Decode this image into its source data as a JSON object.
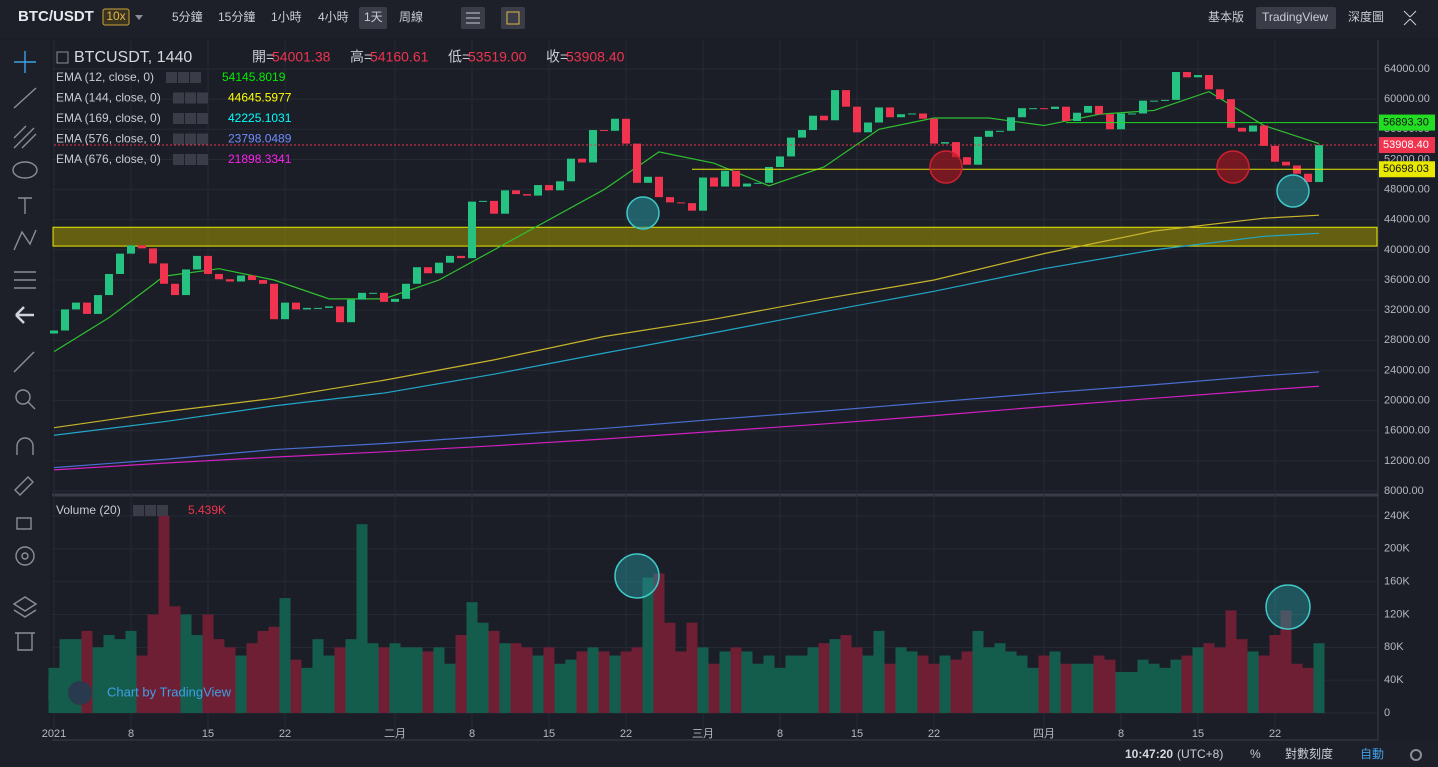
{
  "header": {
    "pair": "BTC/USDT",
    "leverage": "10x",
    "timeframes": [
      "5分鐘",
      "15分鐘",
      "1小時",
      "4小時",
      "1天",
      "周線"
    ],
    "active_timeframe": "1天",
    "views": [
      "基本版",
      "TradingView",
      "深度圖"
    ],
    "active_view": "TradingView"
  },
  "chart_data": {
    "type": "candlestick",
    "symbol": "BTCUSDT, 1440",
    "ohlc_legend": [
      {
        "label": "開=",
        "value": "54001.38"
      },
      {
        "label": "高=",
        "value": "54160.61"
      },
      {
        "label": "低=",
        "value": "53519.00"
      },
      {
        "label": "收=",
        "value": "53908.40"
      }
    ],
    "up_color": "#26c281",
    "down_color": "#f0334e",
    "first_open": 28900,
    "closes": [
      29300,
      32100,
      33000,
      31500,
      34000,
      36800,
      39500,
      40600,
      40200,
      38200,
      35500,
      34000,
      37400,
      39200,
      36800,
      36100,
      35800,
      36600,
      36000,
      35500,
      30800,
      33000,
      32100,
      32300,
      32300,
      32500,
      30400,
      33400,
      34300,
      34300,
      33100,
      33500,
      35500,
      37700,
      36900,
      38300,
      39200,
      38900,
      46400,
      46500,
      44800,
      47900,
      47400,
      47200,
      48600,
      47900,
      49100,
      52100,
      51600,
      55900,
      55800,
      57400,
      54100,
      48900,
      49700,
      47000,
      46300,
      46200,
      45200,
      49600,
      48400,
      50500,
      48400,
      48800,
      48900,
      51000,
      52400,
      54900,
      55900,
      57800,
      57200,
      61200,
      59000,
      55600,
      56900,
      58900,
      57600,
      58000,
      58100,
      57400,
      54100,
      54300,
      52300,
      51300,
      55000,
      55800,
      55800,
      57600,
      58800,
      58800,
      58700,
      59000,
      57100,
      58200,
      59100,
      58000,
      56000,
      58100,
      58100,
      59800,
      59800,
      59900,
      63600,
      62900,
      63200,
      61300,
      60000,
      56200,
      55700,
      56500,
      53800,
      51700,
      51200,
      50100,
      49000,
      53900
    ],
    "emas": [
      {
        "name": "EMA (12, close, 0)",
        "last": "54145.8019",
        "color": "#2fc12f",
        "label_color": "#00ee00",
        "x": [
          0,
          5,
          10,
          15,
          20,
          25,
          30,
          35,
          40,
          45,
          50,
          55,
          60,
          65,
          70,
          75,
          80,
          85,
          90,
          95,
          100,
          105,
          110,
          115
        ],
        "values": [
          26500,
          31000,
          36500,
          37500,
          36000,
          33500,
          33500,
          36000,
          40000,
          44000,
          48000,
          53000,
          51500,
          48500,
          51000,
          56000,
          57500,
          57500,
          56500,
          58000,
          58500,
          61000,
          56500,
          54100
        ]
      },
      {
        "name": "EMA (144, close, 0)",
        "last": "44645.5977",
        "color": "#c8b42a",
        "label_color": "#ffff00",
        "x": [
          0,
          10,
          20,
          30,
          40,
          50,
          60,
          70,
          80,
          90,
          100,
          110,
          115
        ],
        "values": [
          16400,
          18500,
          20300,
          22700,
          25400,
          28500,
          30800,
          33500,
          36000,
          39500,
          42500,
          44200,
          44600
        ]
      },
      {
        "name": "EMA (169, close, 0)",
        "last": "42225.1031",
        "color": "#22a6c8",
        "label_color": "#00ffff",
        "x": [
          0,
          10,
          20,
          30,
          40,
          50,
          60,
          70,
          80,
          90,
          100,
          110,
          115
        ],
        "values": [
          15400,
          17200,
          19300,
          21000,
          23500,
          26300,
          29000,
          31800,
          34500,
          37500,
          40000,
          41800,
          42200
        ]
      },
      {
        "name": "EMA (576, close, 0)",
        "last": "23798.0489",
        "color": "#4a6ed0",
        "label_color": "#6f8cff",
        "x": [
          0,
          10,
          20,
          30,
          40,
          50,
          60,
          70,
          80,
          90,
          100,
          110,
          115
        ],
        "values": [
          11100,
          12200,
          13500,
          14300,
          15300,
          16300,
          17500,
          18600,
          19800,
          21000,
          22100,
          23300,
          23800
        ]
      },
      {
        "name": "EMA (676, close, 0)",
        "last": "21898.3341",
        "color": "#d020c0",
        "label_color": "#ff22ee",
        "x": [
          0,
          10,
          20,
          30,
          40,
          50,
          60,
          70,
          80,
          90,
          100,
          110,
          115
        ],
        "values": [
          10800,
          11700,
          12500,
          13200,
          14000,
          14900,
          15900,
          16900,
          18000,
          19200,
          20300,
          21400,
          21900
        ]
      }
    ],
    "ylim": [
      7735,
      67850
    ],
    "yticks": [
      {
        "value": 64000,
        "label": "64000.00"
      },
      {
        "value": 60000,
        "label": "60000.00"
      },
      {
        "value": 56000,
        "label": "56000.00"
      },
      {
        "value": 52000,
        "label": "52000.00"
      },
      {
        "value": 48000,
        "label": "48000.00"
      },
      {
        "value": 44000,
        "label": "44000.00"
      },
      {
        "value": 40000,
        "label": "40000.00"
      },
      {
        "value": 36000,
        "label": "36000.00"
      },
      {
        "value": 32000,
        "label": "32000.00"
      },
      {
        "value": 28000,
        "label": "28000.00"
      },
      {
        "value": 24000,
        "label": "24000.00"
      },
      {
        "value": 20000,
        "label": "20000.00"
      },
      {
        "value": 16000,
        "label": "16000.00"
      },
      {
        "value": 12000,
        "label": "12000.00"
      },
      {
        "value": 8000,
        "label": "8000.00"
      }
    ],
    "price_lines": [
      {
        "value": 56893.3,
        "label": "56893.30",
        "color": "#22dd22",
        "from": 92
      },
      {
        "value": 53908.4,
        "label": "53908.40",
        "color": "#f0334e",
        "from": 0
      },
      {
        "value": 50698.03,
        "label": "50698.03",
        "color": "#e8e800",
        "from": 58
      }
    ],
    "zone": [
      40500,
      43000
    ],
    "x_labels": [
      {
        "day": 0,
        "label": "2021"
      },
      {
        "day": 7,
        "label": "8"
      },
      {
        "day": 14,
        "label": "15"
      },
      {
        "day": 21,
        "label": "22"
      },
      {
        "day": 31,
        "label": "二月"
      },
      {
        "day": 38,
        "label": "8"
      },
      {
        "day": 45,
        "label": "15"
      },
      {
        "day": 52,
        "label": "22"
      },
      {
        "day": 59,
        "label": "三月"
      },
      {
        "day": 66,
        "label": "8"
      },
      {
        "day": 73,
        "label": "15"
      },
      {
        "day": 80,
        "label": "22"
      },
      {
        "day": 90,
        "label": "四月"
      },
      {
        "day": 97,
        "label": "8"
      },
      {
        "day": 104,
        "label": "15"
      },
      {
        "day": 111,
        "label": "22"
      }
    ],
    "volume": {
      "name": "Volume (20)",
      "last": "5.439K",
      "values": [
        55000,
        90000,
        90000,
        100000,
        80000,
        95000,
        90000,
        100000,
        70000,
        120000,
        240000,
        130000,
        120000,
        95000,
        120000,
        90000,
        80000,
        70000,
        85000,
        100000,
        105000,
        140000,
        65000,
        55000,
        90000,
        70000,
        80000,
        90000,
        230000,
        85000,
        80000,
        85000,
        80000,
        80000,
        75000,
        80000,
        60000,
        95000,
        135000,
        110000,
        100000,
        85000,
        85000,
        80000,
        70000,
        80000,
        60000,
        65000,
        75000,
        80000,
        75000,
        70000,
        75000,
        80000,
        165000,
        170000,
        110000,
        75000,
        110000,
        80000,
        60000,
        75000,
        80000,
        75000,
        60000,
        70000,
        55000,
        70000,
        70000,
        80000,
        85000,
        90000,
        95000,
        80000,
        70000,
        100000,
        60000,
        80000,
        75000,
        70000,
        60000,
        70000,
        65000,
        75000,
        100000,
        80000,
        85000,
        75000,
        70000,
        55000,
        70000,
        75000,
        60000,
        60000,
        60000,
        70000,
        65000,
        50000,
        50000,
        65000,
        60000,
        55000,
        65000,
        70000,
        80000,
        85000,
        80000,
        125000,
        90000,
        75000,
        70000,
        95000,
        125000,
        60000,
        55000,
        85000
      ],
      "ylim": [
        -32900,
        261900
      ],
      "yticks": [
        {
          "value": 240000,
          "label": "240K"
        },
        {
          "value": 200000,
          "label": "200K"
        },
        {
          "value": 160000,
          "label": "160K"
        },
        {
          "value": 120000,
          "label": "120K"
        },
        {
          "value": 80000,
          "label": "80K"
        },
        {
          "value": 40000,
          "label": "40K"
        },
        0
      ]
    },
    "watermark": "Chart by TradingView"
  },
  "footer": {
    "time": "10:47:20",
    "timezone": "(UTC+8)",
    "percent": "%",
    "log": "對數刻度",
    "auto": "自動"
  }
}
